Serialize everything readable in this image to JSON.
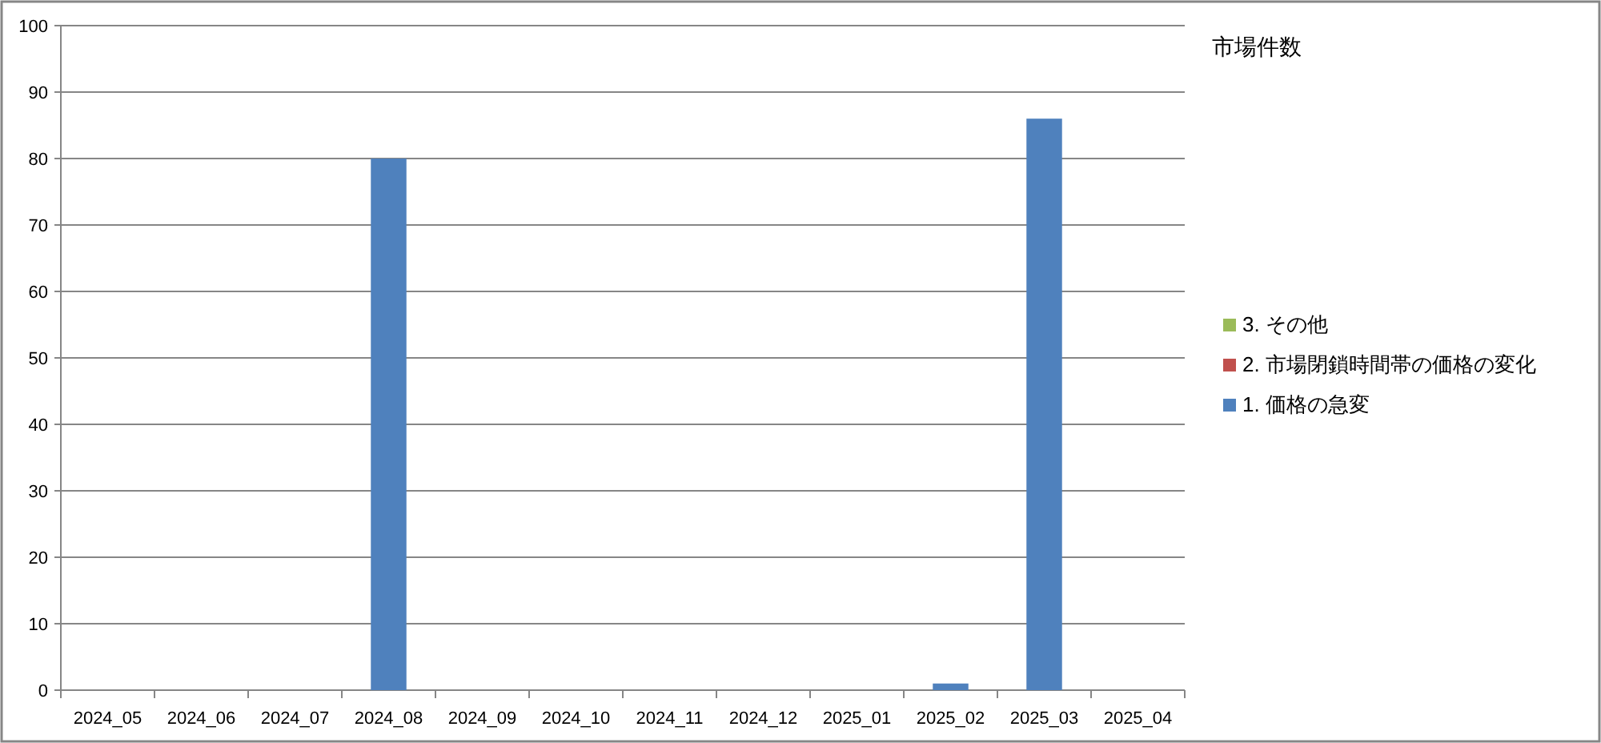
{
  "chart_data": {
    "type": "bar",
    "stacked": true,
    "title": "市場件数",
    "categories": [
      "2024_05",
      "2024_06",
      "2024_07",
      "2024_08",
      "2024_09",
      "2024_10",
      "2024_11",
      "2024_12",
      "2025_01",
      "2025_02",
      "2025_03",
      "2025_04"
    ],
    "series": [
      {
        "name": "1. 価格の急変",
        "color": "#4f81bd",
        "values": [
          0,
          0,
          0,
          80,
          0,
          0,
          0,
          0,
          0,
          1,
          86,
          0
        ]
      },
      {
        "name": "2. 市場閉鎖時間帯の価格の変化",
        "color": "#c0504d",
        "values": [
          0,
          0,
          0,
          0,
          0,
          0,
          0,
          0,
          0,
          0,
          0,
          0
        ]
      },
      {
        "name": "3. その他",
        "color": "#9bbb59",
        "values": [
          0,
          0,
          0,
          0,
          0,
          0,
          0,
          0,
          0,
          0,
          0,
          0
        ]
      }
    ],
    "ylim": [
      0,
      100
    ],
    "yticks": [
      0,
      10,
      20,
      30,
      40,
      50,
      60,
      70,
      80,
      90,
      100
    ],
    "grid": "y",
    "legend": "right"
  }
}
